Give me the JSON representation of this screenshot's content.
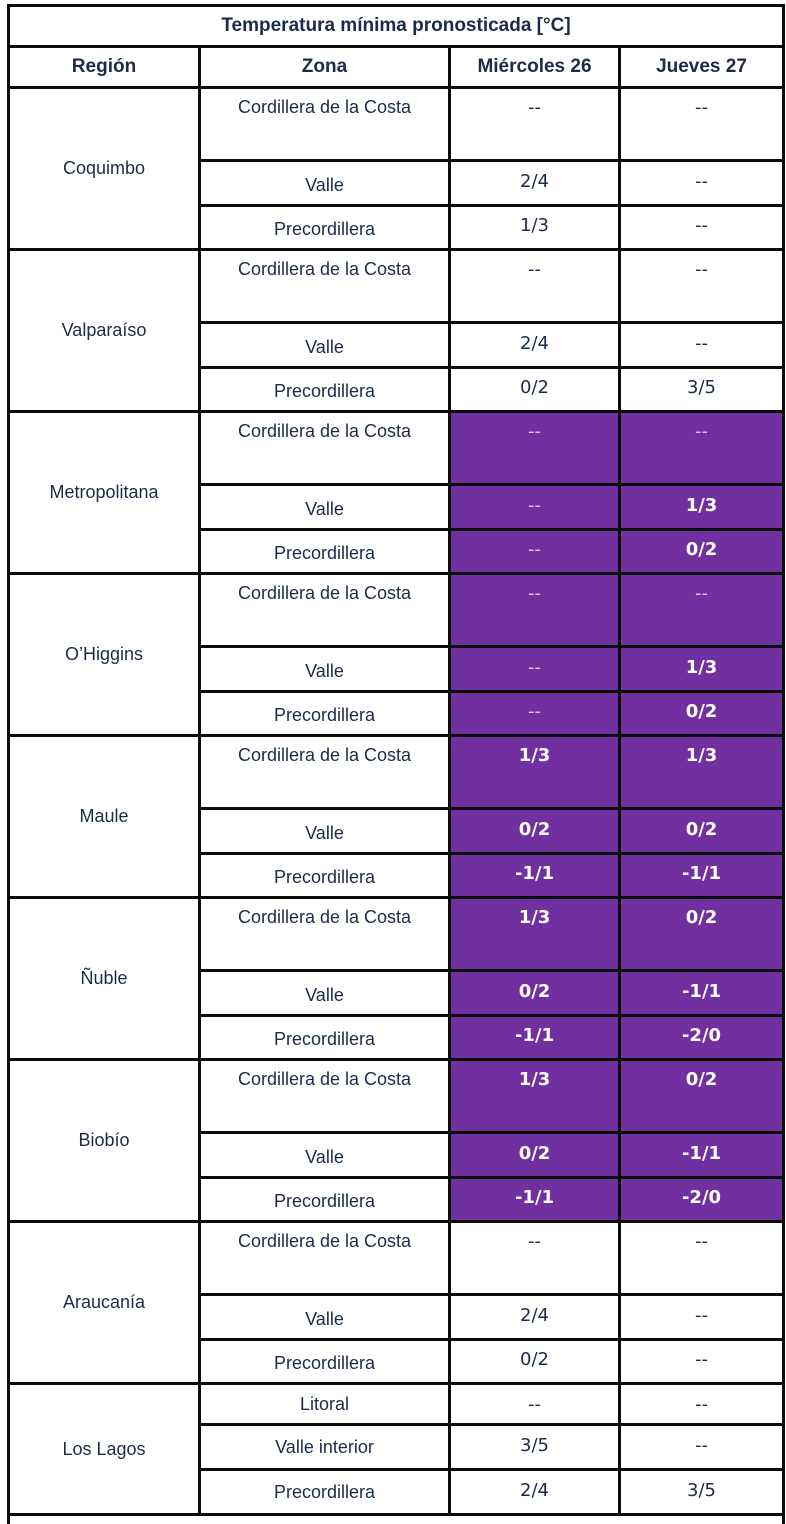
{
  "title": "Temperatura mínima pronosticada [°C]",
  "headers": {
    "region": "Región",
    "zona": "Zona",
    "day1": "Miércoles 26",
    "day2": "Jueves 27"
  },
  "highlight_color": "#7030A0",
  "regions": [
    {
      "name": "Coquimbo",
      "rows": [
        {
          "zona": "Cordillera de la Costa",
          "d1": "--",
          "d2": "--",
          "h1": false,
          "h2": false
        },
        {
          "zona": "Valle",
          "d1": "2/4",
          "d2": "--",
          "h1": false,
          "h2": false
        },
        {
          "zona": "Precordillera",
          "d1": "1/3",
          "d2": "--",
          "h1": false,
          "h2": false
        }
      ]
    },
    {
      "name": "Valparaíso",
      "rows": [
        {
          "zona": "Cordillera de la Costa",
          "d1": "--",
          "d2": "--",
          "h1": false,
          "h2": false
        },
        {
          "zona": "Valle",
          "d1": "2/4",
          "d2": "--",
          "h1": false,
          "h2": false
        },
        {
          "zona": "Precordillera",
          "d1": "0/2",
          "d2": "3/5",
          "h1": false,
          "h2": false
        }
      ]
    },
    {
      "name": "Metropolitana",
      "rows": [
        {
          "zona": "Cordillera de la Costa",
          "d1": "--",
          "d2": "--",
          "h1": true,
          "h2": true
        },
        {
          "zona": "Valle",
          "d1": "--",
          "d2": "1/3",
          "h1": true,
          "h2": true
        },
        {
          "zona": "Precordillera",
          "d1": "--",
          "d2": "0/2",
          "h1": true,
          "h2": true
        }
      ]
    },
    {
      "name": "O’Higgins",
      "rows": [
        {
          "zona": "Cordillera de la Costa",
          "d1": "--",
          "d2": "--",
          "h1": true,
          "h2": true
        },
        {
          "zona": "Valle",
          "d1": "--",
          "d2": "1/3",
          "h1": true,
          "h2": true
        },
        {
          "zona": "Precordillera",
          "d1": "--",
          "d2": "0/2",
          "h1": true,
          "h2": true
        }
      ]
    },
    {
      "name": "Maule",
      "rows": [
        {
          "zona": "Cordillera de la Costa",
          "d1": "1/3",
          "d2": "1/3",
          "h1": true,
          "h2": true
        },
        {
          "zona": "Valle",
          "d1": "0/2",
          "d2": "0/2",
          "h1": true,
          "h2": true
        },
        {
          "zona": "Precordillera",
          "d1": "-1/1",
          "d2": "-1/1",
          "h1": true,
          "h2": true
        }
      ]
    },
    {
      "name": "Ñuble",
      "rows": [
        {
          "zona": "Cordillera de la Costa",
          "d1": "1/3",
          "d2": "0/2",
          "h1": true,
          "h2": true
        },
        {
          "zona": "Valle",
          "d1": "0/2",
          "d2": "-1/1",
          "h1": true,
          "h2": true
        },
        {
          "zona": "Precordillera",
          "d1": "-1/1",
          "d2": "-2/0",
          "h1": true,
          "h2": true
        }
      ]
    },
    {
      "name": "Biobío",
      "rows": [
        {
          "zona": "Cordillera de la Costa",
          "d1": "1/3",
          "d2": "0/2",
          "h1": true,
          "h2": true
        },
        {
          "zona": "Valle",
          "d1": "0/2",
          "d2": "-1/1",
          "h1": true,
          "h2": true
        },
        {
          "zona": "Precordillera",
          "d1": "-1/1",
          "d2": "-2/0",
          "h1": true,
          "h2": true
        }
      ]
    },
    {
      "name": "Araucanía",
      "rows": [
        {
          "zona": "Cordillera de la Costa",
          "d1": "--",
          "d2": "--",
          "h1": false,
          "h2": false
        },
        {
          "zona": "Valle",
          "d1": "2/4",
          "d2": "--",
          "h1": false,
          "h2": false
        },
        {
          "zona": "Precordillera",
          "d1": "0/2",
          "d2": "--",
          "h1": false,
          "h2": false
        }
      ]
    },
    {
      "name": "Los Lagos",
      "rows": [
        {
          "zona": "Litoral",
          "d1": "--",
          "d2": "--",
          "h1": false,
          "h2": false
        },
        {
          "zona": "Valle interior",
          "d1": "3/5",
          "d2": "--",
          "h1": false,
          "h2": false
        },
        {
          "zona": "Precordillera",
          "d1": "2/4",
          "d2": "3/5",
          "h1": false,
          "h2": false
        }
      ]
    }
  ]
}
